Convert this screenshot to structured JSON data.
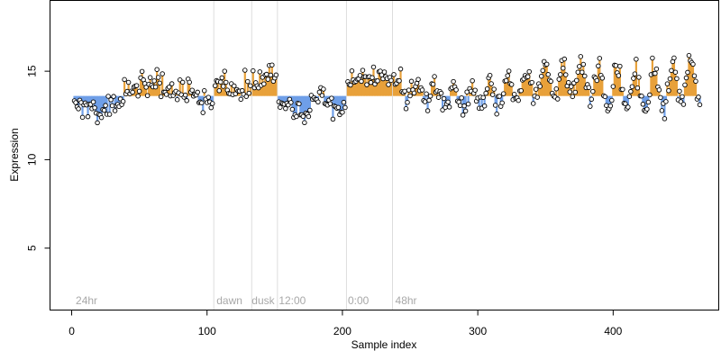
{
  "chart_data": {
    "type": "scatter",
    "title": "",
    "xlabel": "Sample index",
    "ylabel": "Expression",
    "xlim": [
      -16,
      478
    ],
    "ylim": [
      1.5,
      19
    ],
    "xticks": [
      0,
      100,
      200,
      300,
      400
    ],
    "yticks": [
      5,
      10,
      15
    ],
    "grid": false,
    "legend": "none",
    "colors": {
      "above": "#e8a13a",
      "below": "#6f9fe8",
      "point_stroke": "#000000",
      "point_fill": "#ffffff",
      "separator": "#dddddd",
      "annotation": "#a8a8a8"
    },
    "baseline": 13.6,
    "separators": [
      105,
      133,
      152,
      203,
      237
    ],
    "annotations": [
      {
        "x": 3,
        "text": "24hr"
      },
      {
        "x": 107,
        "text": "dawn"
      },
      {
        "x": 133,
        "text": "dusk"
      },
      {
        "x": 153,
        "text": "12:00"
      },
      {
        "x": 204,
        "text": "0:00"
      },
      {
        "x": 239,
        "text": "48hr"
      }
    ],
    "series": [
      {
        "segments": [
          {
            "x_start": 2,
            "x_end": 104,
            "anchors": [
              [
                2,
                13.2
              ],
              [
                8,
                13.0
              ],
              [
                15,
                12.6
              ],
              [
                20,
                12.4
              ],
              [
                25,
                12.8
              ],
              [
                32,
                13.2
              ],
              [
                40,
                13.7
              ],
              [
                48,
                14.2
              ],
              [
                55,
                14.4
              ],
              [
                62,
                14.3
              ],
              [
                70,
                14.1
              ],
              [
                80,
                13.9
              ],
              [
                88,
                13.8
              ],
              [
                96,
                13.6
              ],
              [
                100,
                13.2
              ],
              [
                104,
                12.8
              ]
            ]
          },
          {
            "x_start": 106,
            "x_end": 132,
            "anchors": [
              [
                106,
                14.2
              ],
              [
                112,
                14.3
              ],
              [
                118,
                14.1
              ],
              [
                124,
                13.9
              ],
              [
                128,
                14.0
              ],
              [
                132,
                14.1
              ]
            ]
          },
          {
            "x_start": 134,
            "x_end": 151,
            "anchors": [
              [
                134,
                14.3
              ],
              [
                140,
                14.5
              ],
              [
                146,
                14.7
              ],
              [
                151,
                14.8
              ]
            ]
          },
          {
            "x_start": 153,
            "x_end": 202,
            "anchors": [
              [
                153,
                13.2
              ],
              [
                160,
                13.0
              ],
              [
                168,
                12.6
              ],
              [
                174,
                12.8
              ],
              [
                180,
                13.4
              ],
              [
                186,
                13.7
              ],
              [
                192,
                13.2
              ],
              [
                196,
                12.8
              ],
              [
                202,
                12.9
              ]
            ]
          },
          {
            "x_start": 204,
            "x_end": 236,
            "anchors": [
              [
                204,
                14.4
              ],
              [
                212,
                14.5
              ],
              [
                220,
                14.6
              ],
              [
                228,
                14.7
              ],
              [
                236,
                14.5
              ]
            ]
          },
          {
            "x_start": 238,
            "x_end": 464,
            "anchors": [
              [
                238,
                14.2
              ],
              [
                250,
                13.9
              ],
              [
                265,
                13.7
              ],
              [
                280,
                13.4
              ],
              [
                290,
                13.2
              ],
              [
                300,
                13.5
              ],
              [
                320,
                13.9
              ],
              [
                340,
                14.3
              ],
              [
                360,
                14.7
              ],
              [
                380,
                14.3
              ],
              [
                400,
                13.9
              ],
              [
                420,
                13.8
              ],
              [
                440,
                14.2
              ],
              [
                464,
                14.6
              ]
            ]
          }
        ],
        "oscillation": {
          "start": 238,
          "period": 13.5,
          "amplitude_start": 0.4,
          "amplitude_end": 1.3
        },
        "noise": 0.35,
        "seed": 17
      }
    ]
  }
}
